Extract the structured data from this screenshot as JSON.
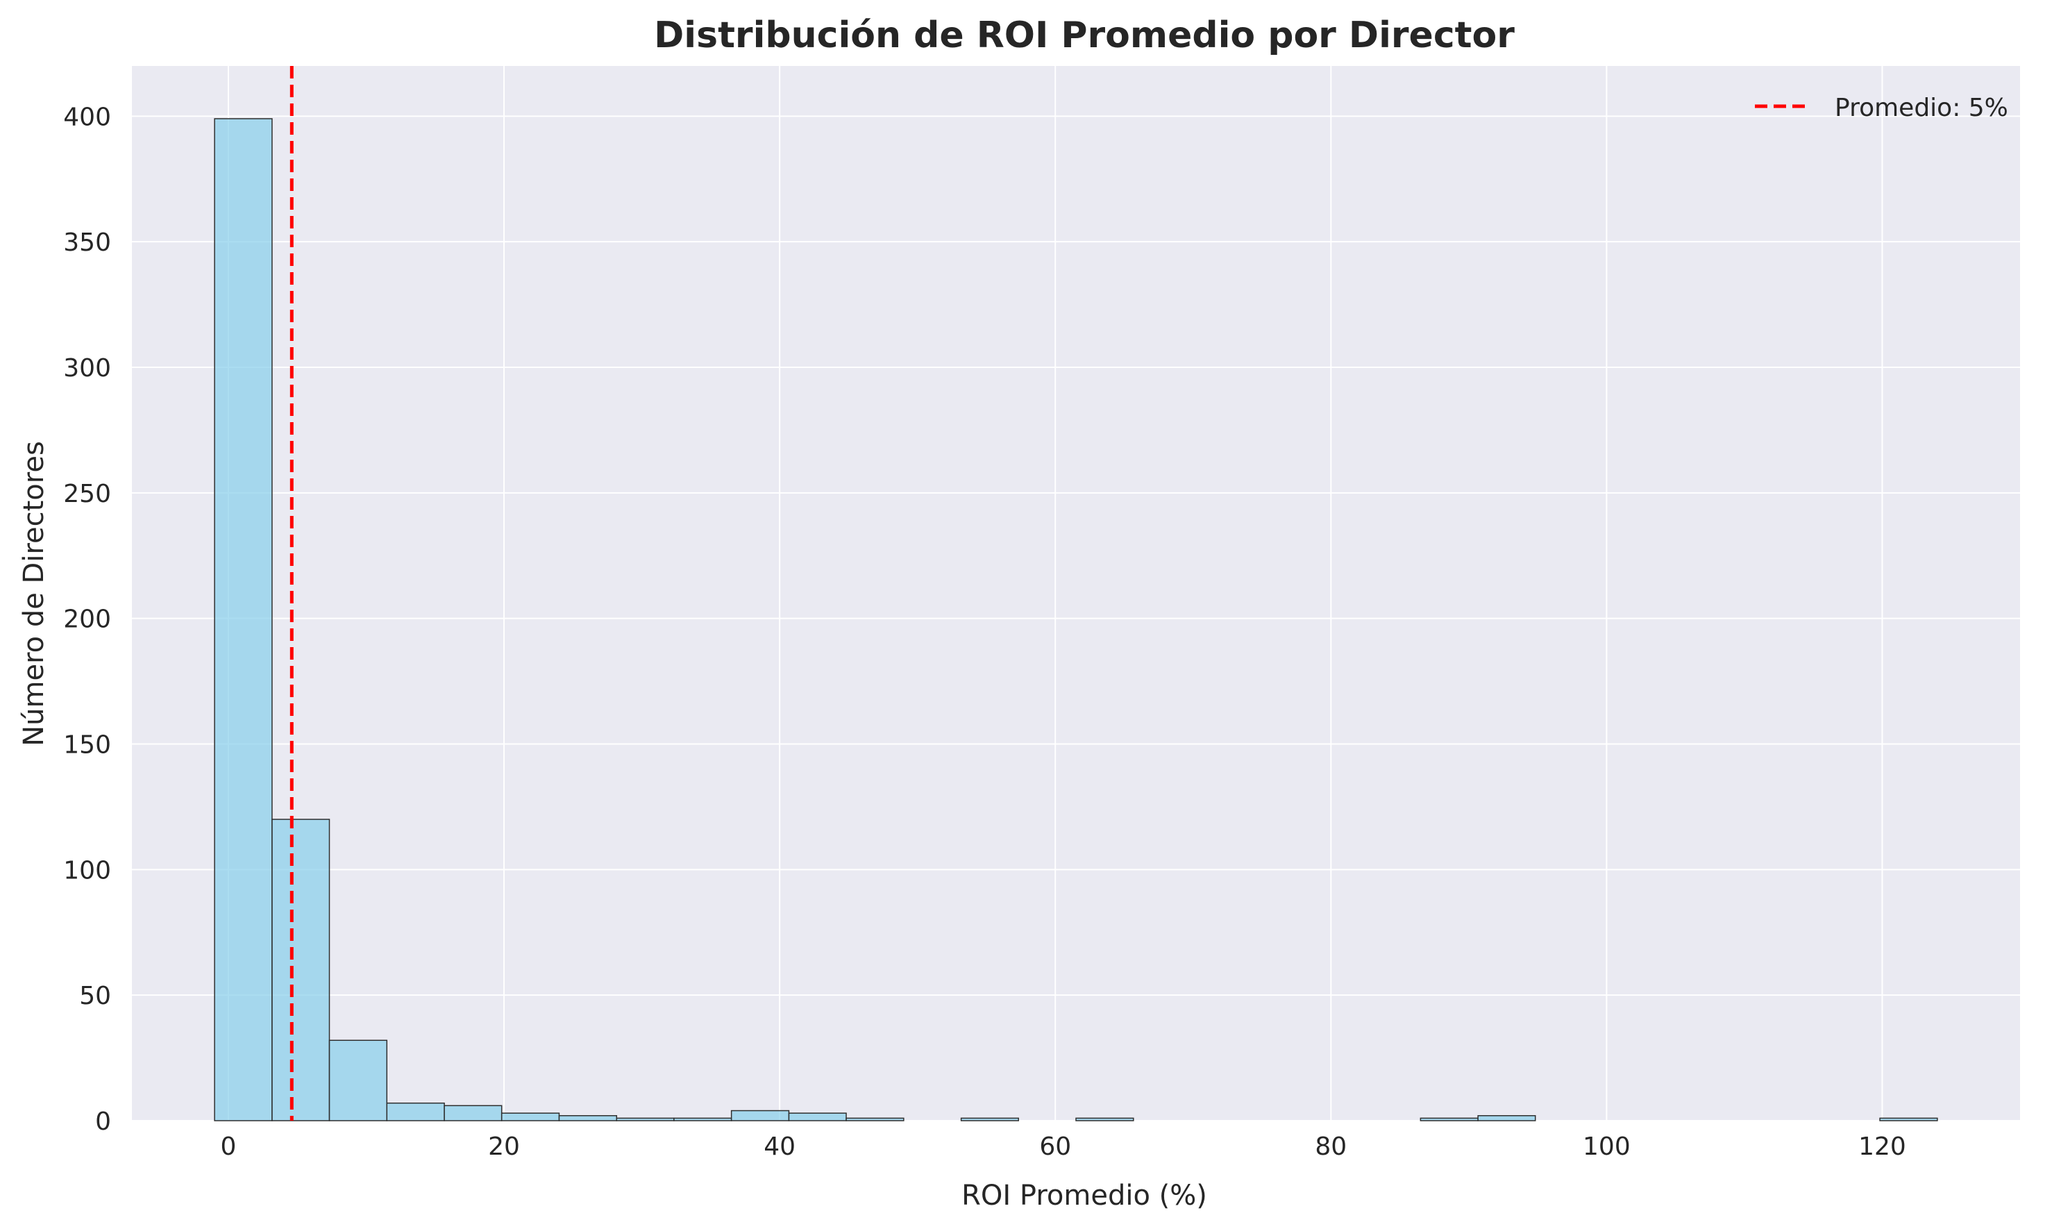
{
  "chart_data": {
    "type": "bar",
    "title": "Distribución de ROI Promedio por Director",
    "xlabel": "ROI Promedio (%)",
    "ylabel": "Número de Directores",
    "xlim": [
      -7,
      130
    ],
    "ylim": [
      0,
      420
    ],
    "x_ticks": [
      0,
      20,
      40,
      60,
      80,
      100,
      120
    ],
    "y_ticks": [
      0,
      50,
      100,
      150,
      200,
      250,
      300,
      350,
      400
    ],
    "grid": true,
    "legend_position": "top-right",
    "bin_edges": [
      -1.0,
      3.17,
      7.33,
      11.5,
      15.67,
      19.83,
      24.0,
      28.17,
      32.33,
      36.5,
      40.67,
      44.83,
      49.0,
      53.17,
      57.33,
      61.5,
      65.67,
      69.83,
      74.0,
      78.17,
      82.33,
      86.5,
      90.67,
      94.83,
      99.0,
      103.17,
      107.33,
      111.5,
      115.67,
      119.83,
      124.0
    ],
    "values": [
      399,
      120,
      32,
      7,
      6,
      3,
      2,
      1,
      1,
      4,
      3,
      1,
      0,
      1,
      0,
      1,
      0,
      0,
      0,
      0,
      0,
      1,
      2,
      0,
      0,
      0,
      0,
      0,
      0,
      1
    ],
    "mean_line": {
      "x": 4.6,
      "label": "Promedio: 5%"
    },
    "colors": {
      "bar_fill": "#87ceeb",
      "bar_edge": "#2f2f2f",
      "mean_line": "#ff0000",
      "plot_background": "#eaeaf2",
      "grid": "#ffffff"
    }
  }
}
